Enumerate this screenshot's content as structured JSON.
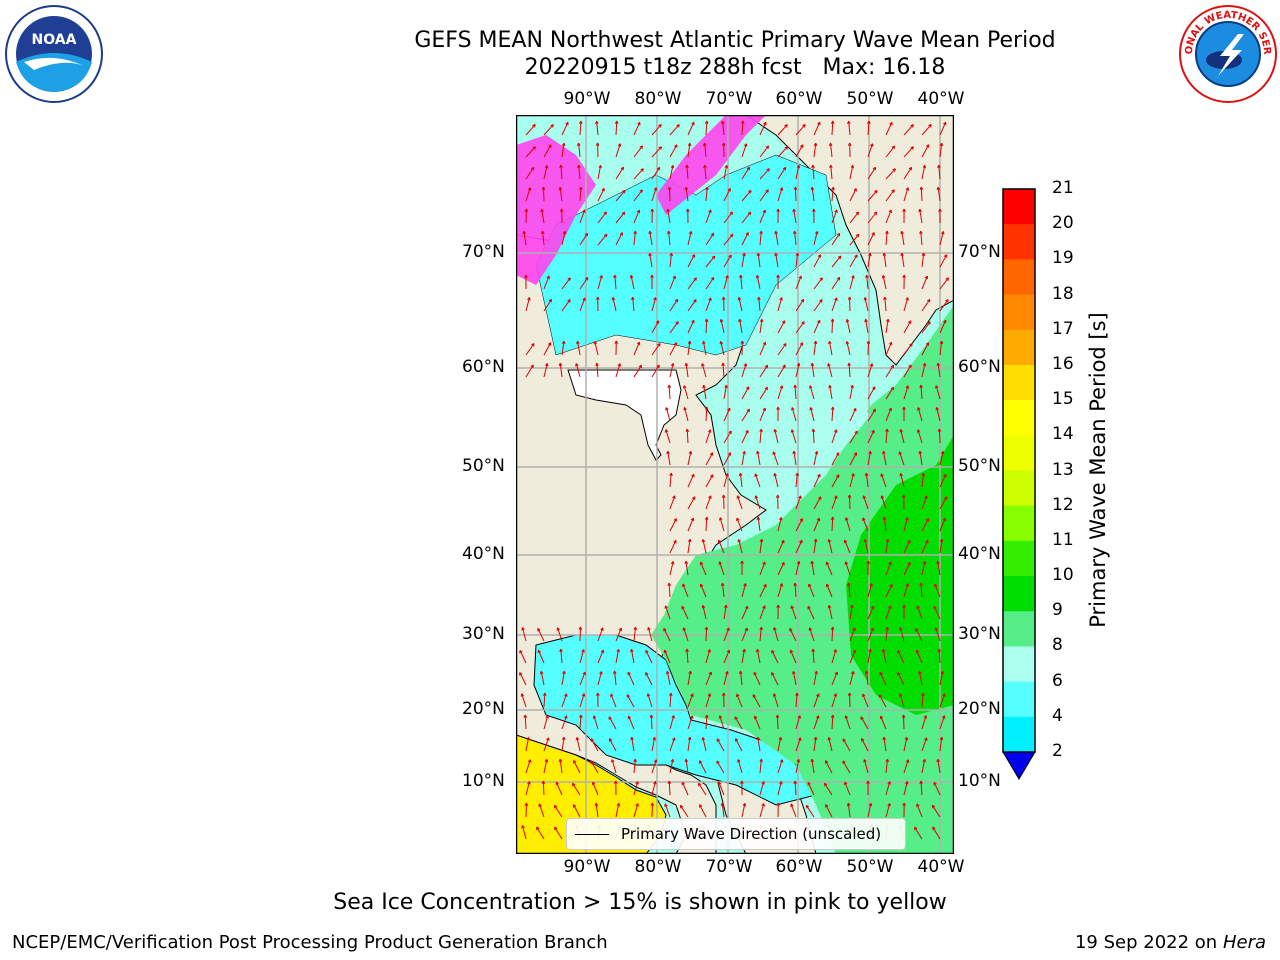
{
  "header": {
    "title_line1": "GEFS MEAN Northwest Atlantic Primary Wave Mean Period",
    "title_line2": "20220915 t18z 288h fcst   Max: 16.18"
  },
  "logos": {
    "left": {
      "name": "noaa-logo",
      "text": "NOAA"
    },
    "right": {
      "name": "nws-logo",
      "text": "NATIONAL WEATHER SERVICE"
    }
  },
  "map": {
    "lon_labels": [
      "90°W",
      "80°W",
      "70°W",
      "60°W",
      "50°W",
      "40°W"
    ],
    "lat_labels": [
      "70°N",
      "60°N",
      "50°N",
      "40°N",
      "30°N",
      "20°N",
      "10°N"
    ],
    "legend_label": "Primary Wave Direction (unscaled)",
    "colors": {
      "land": "#efecdb",
      "grid": "#b0b0b0",
      "arrows": "#e00000",
      "ice_pink": "#ff44ee",
      "ice_yellow": "#ffee00"
    }
  },
  "colorbar": {
    "label": "Primary Wave Mean Period [s]",
    "ticks": [
      "21",
      "20",
      "19",
      "18",
      "17",
      "16",
      "15",
      "14",
      "13",
      "12",
      "11",
      "10",
      "9",
      "8",
      "6",
      "4",
      "2"
    ],
    "colors": [
      "#ff0000",
      "#ff3300",
      "#ff6600",
      "#ff8800",
      "#ffaa00",
      "#ffdd00",
      "#ffff00",
      "#eeff00",
      "#ccff00",
      "#88ff00",
      "#33ee00",
      "#00dd00",
      "#55ee88",
      "#aaffee",
      "#55ffff",
      "#00f0ff",
      "#0088ff"
    ],
    "under_color": "#0000ee"
  },
  "footnote": "Sea Ice Concentration > 15% is shown in pink to yellow",
  "credits": {
    "left": "NCEP/EMC/Verification Post Processing Product Generation Branch",
    "right_date": "19 Sep 2022 on",
    "right_host": "Hera"
  }
}
